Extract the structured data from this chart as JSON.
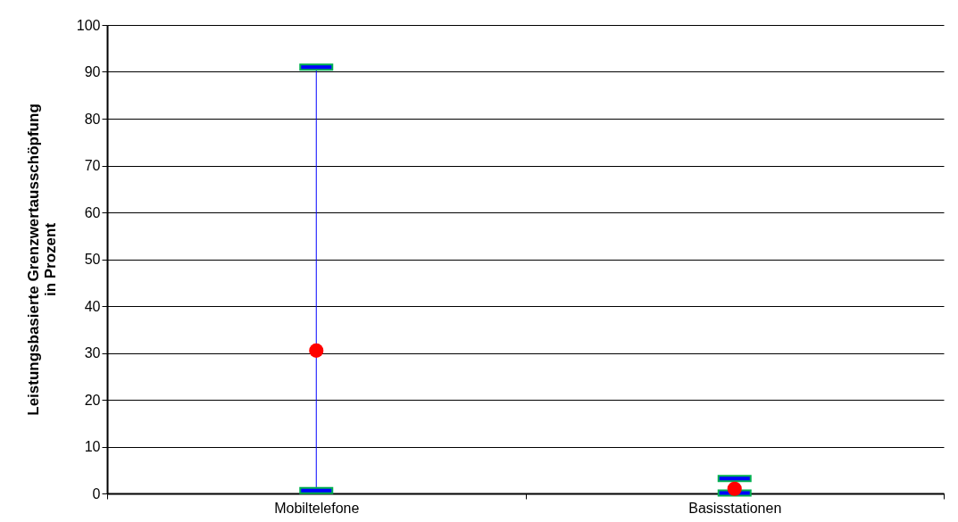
{
  "chart_data": {
    "type": "scatter",
    "ylabel": "Leistungsbasierte Grenzwertausschöpfung\nin Prozent",
    "categories": [
      "Mobiltelefone",
      "Basisstationen"
    ],
    "series": [
      {
        "color": "#ff0000",
        "values": [
          30.5,
          1.0
        ],
        "errors": [
          [
            0.6,
            91
          ],
          [
            0.1,
            3.2
          ]
        ]
      }
    ],
    "marker": "circle",
    "ylim": [
      0,
      100
    ],
    "yticks": [
      0,
      10,
      20,
      30,
      40,
      50,
      60,
      70,
      80,
      90,
      100
    ],
    "grid": "y",
    "legend": false
  }
}
